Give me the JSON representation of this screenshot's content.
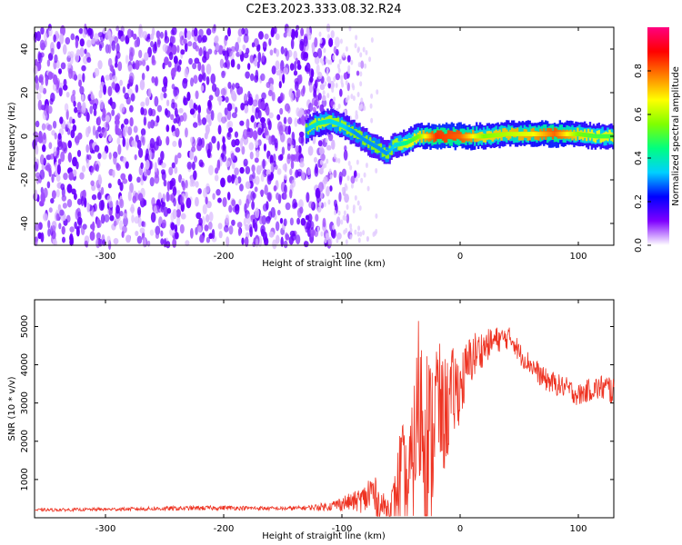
{
  "title": "C2E3.2023.333.08.32.R24",
  "chart_data": [
    {
      "type": "heatmap",
      "xlabel": "Height of straight line (km)",
      "ylabel": "Frequency (Hz)",
      "xlim": [
        -360,
        130
      ],
      "ylim": [
        -50,
        50
      ],
      "xticks": [
        -300,
        -200,
        -100,
        0,
        100
      ],
      "yticks": [
        -40,
        -20,
        0,
        20,
        40
      ],
      "colorbar": {
        "label": "Normalized spectral amplitude",
        "range": [
          0,
          1
        ],
        "ticks": [
          "0.0",
          "0.2",
          "0.4",
          "0.6",
          "0.8"
        ],
        "colors": [
          "#ffffff",
          "#7f00ff",
          "#0000ff",
          "#00d0ff",
          "#00ff80",
          "#80ff00",
          "#ffff00",
          "#ff8000",
          "#ff0000",
          "#ff0080"
        ]
      },
      "noise_region_x": [
        -360,
        -120
      ],
      "signal_track": [
        {
          "x": -130,
          "y": 3,
          "amp": 0.3
        },
        {
          "x": -120,
          "y": 6,
          "amp": 0.4
        },
        {
          "x": -110,
          "y": 7,
          "amp": 0.35
        },
        {
          "x": -100,
          "y": 5,
          "amp": 0.35
        },
        {
          "x": -90,
          "y": 2,
          "amp": 0.3
        },
        {
          "x": -80,
          "y": -2,
          "amp": 0.3
        },
        {
          "x": -70,
          "y": -5,
          "amp": 0.3
        },
        {
          "x": -62,
          "y": -8,
          "amp": 0.3
        },
        {
          "x": -55,
          "y": -4,
          "amp": 0.35
        },
        {
          "x": -45,
          "y": -3,
          "amp": 0.45
        },
        {
          "x": -35,
          "y": 0,
          "amp": 0.55
        },
        {
          "x": -20,
          "y": 0,
          "amp": 0.85
        },
        {
          "x": 0,
          "y": 0,
          "amp": 0.8
        },
        {
          "x": 20,
          "y": 0,
          "amp": 0.55
        },
        {
          "x": 40,
          "y": 1,
          "amp": 0.6
        },
        {
          "x": 60,
          "y": 1,
          "amp": 0.65
        },
        {
          "x": 80,
          "y": 1,
          "amp": 0.8
        },
        {
          "x": 100,
          "y": 1,
          "amp": 0.55
        },
        {
          "x": 115,
          "y": 0,
          "amp": 0.5
        },
        {
          "x": 130,
          "y": 0,
          "amp": 0.5
        }
      ]
    },
    {
      "type": "line",
      "xlabel": "Height of straight line (km)",
      "ylabel": "SNR (10 * v/v)",
      "xlim": [
        -360,
        130
      ],
      "ylim": [
        0,
        5700
      ],
      "xticks": [
        -300,
        -200,
        -100,
        0,
        100
      ],
      "yticks": [
        1000,
        2000,
        3000,
        4000,
        5000
      ],
      "color": "#ee3322",
      "series": [
        {
          "x": [
            -360,
            -300,
            -250,
            -200,
            -150,
            -130,
            -110,
            -100,
            -90,
            -80,
            -75,
            -70,
            -65,
            -60,
            -55,
            -50,
            -45,
            -40,
            -35,
            -30,
            -25,
            -20,
            -15,
            -10,
            -5,
            0,
            10,
            20,
            30,
            40,
            45,
            50,
            60,
            70,
            80,
            90,
            100,
            110,
            120,
            130
          ],
          "y": [
            200,
            220,
            240,
            260,
            240,
            260,
            300,
            380,
            420,
            500,
            700,
            400,
            300,
            250,
            500,
            1200,
            700,
            1500,
            3000,
            2500,
            1800,
            3200,
            2600,
            2900,
            3300,
            3400,
            4200,
            4450,
            4650,
            4700,
            4650,
            4300,
            4000,
            3650,
            3500,
            3400,
            3200,
            3350,
            3400,
            3350
          ],
          "amp": [
            40,
            40,
            60,
            60,
            50,
            60,
            120,
            200,
            250,
            400,
            700,
            500,
            350,
            300,
            700,
            1500,
            1200,
            1600,
            2600,
            2600,
            2400,
            1800,
            1600,
            1400,
            1200,
            900,
            700,
            450,
            350,
            300,
            300,
            300,
            280,
            300,
            300,
            280,
            300,
            300,
            350,
            450
          ]
        }
      ]
    }
  ]
}
